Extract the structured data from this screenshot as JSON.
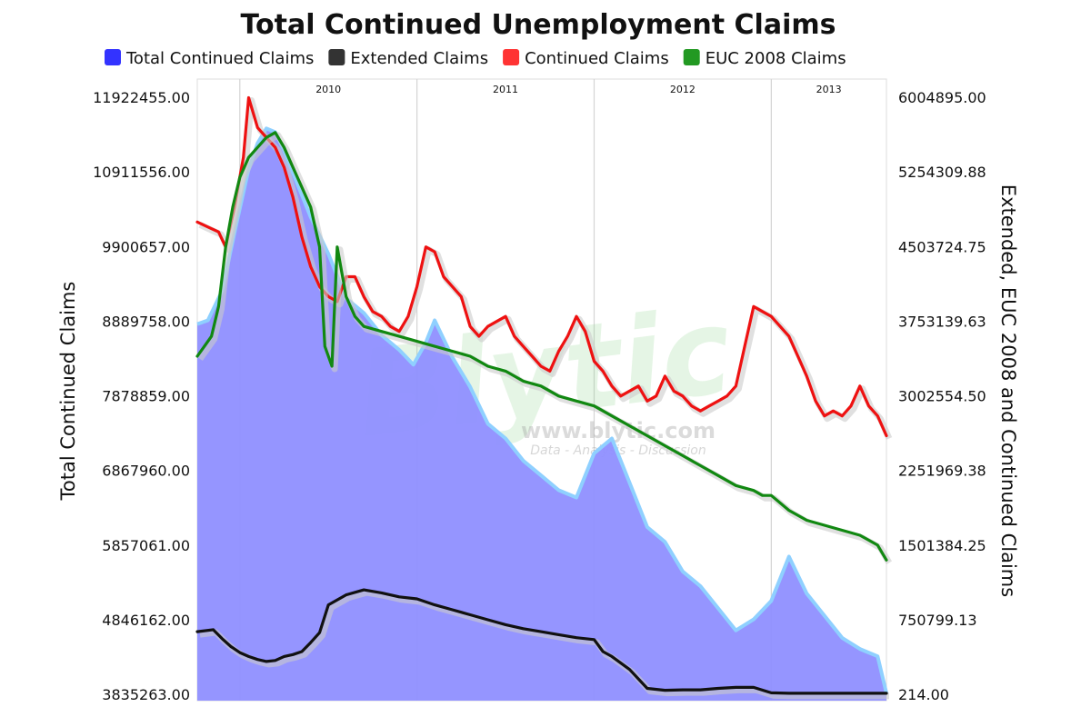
{
  "chart_data": {
    "type": "line",
    "title": "Total Continued Unemployment Claims",
    "legend": {
      "placement": "top",
      "entries": [
        {
          "label": "Total Continued Claims",
          "color": "#3333ff"
        },
        {
          "label": "Extended Claims",
          "color": "#333333"
        },
        {
          "label": "Continued Claims",
          "color": "#ff3333"
        },
        {
          "label": "EUC 2008 Claims",
          "color": "#229922"
        }
      ]
    },
    "x_labels": [
      "2010",
      "2011",
      "2012",
      "2013"
    ],
    "x_range": [
      2009.76,
      2013.65
    ],
    "left_axis": {
      "title": "Total Continued Claims",
      "range": [
        3835263,
        11922455
      ],
      "ticks": [
        "11922455.00",
        "10911556.00",
        "9900657.00",
        "8889758.00",
        "7878859.00",
        "6867960.00",
        "5857061.00",
        "4846162.00",
        "3835263.00"
      ]
    },
    "right_axis": {
      "title": "Extended, EUC 2008 and Continued Claims",
      "range": [
        214,
        6004895
      ],
      "ticks": [
        "6004895.00",
        "5254309.88",
        "4503724.75",
        "3753139.63",
        "3002554.50",
        "2251969.38",
        "1501384.25",
        "750799.13",
        "214.00"
      ]
    },
    "grid": {
      "vertical": true,
      "horizontal": false
    },
    "watermark": {
      "brand": "Blytic",
      "url": "www.blytic.com",
      "tagline": "Data - Analysis - Discussion"
    },
    "series": [
      {
        "name": "Total Continued Claims",
        "axis": "left",
        "kind": "area",
        "color": "#3333ff",
        "x": [
          2009.76,
          2009.82,
          2009.9,
          2009.98,
          2010.05,
          2010.1,
          2010.15,
          2010.2,
          2010.25,
          2010.3,
          2010.4,
          2010.5,
          2010.6,
          2010.7,
          2010.8,
          2010.9,
          2010.98,
          2011.05,
          2011.1,
          2011.2,
          2011.3,
          2011.4,
          2011.5,
          2011.6,
          2011.7,
          2011.8,
          2011.9,
          2012.0,
          2012.1,
          2012.2,
          2012.3,
          2012.4,
          2012.5,
          2012.6,
          2012.7,
          2012.8,
          2012.9,
          2013.0,
          2013.1,
          2013.2,
          2013.3,
          2013.4,
          2013.5,
          2013.6,
          2013.65
        ],
        "y": [
          8850000,
          8900000,
          9300000,
          10200000,
          10950000,
          11300000,
          11500000,
          11450000,
          11200000,
          10900000,
          10300000,
          9800000,
          9200000,
          9000000,
          8700000,
          8500000,
          8300000,
          8600000,
          8900000,
          8400000,
          8000000,
          7500000,
          7300000,
          7000000,
          6800000,
          6600000,
          6500000,
          7100000,
          7300000,
          6700000,
          6100000,
          5900000,
          5500000,
          5300000,
          5000000,
          4700000,
          4850000,
          5100000,
          5700000,
          5200000,
          4900000,
          4600000,
          4450000,
          4350000,
          3850000
        ]
      },
      {
        "name": "Extended Claims",
        "axis": "right",
        "kind": "line",
        "color": "#111111",
        "x": [
          2009.76,
          2009.85,
          2009.9,
          2009.95,
          2010.0,
          2010.05,
          2010.1,
          2010.15,
          2010.2,
          2010.25,
          2010.3,
          2010.35,
          2010.4,
          2010.45,
          2010.5,
          2010.6,
          2010.7,
          2010.8,
          2010.9,
          2011.0,
          2011.1,
          2011.2,
          2011.3,
          2011.4,
          2011.5,
          2011.6,
          2011.7,
          2011.8,
          2011.9,
          2012.0,
          2012.05,
          2012.1,
          2012.2,
          2012.3,
          2012.4,
          2012.5,
          2012.6,
          2012.7,
          2012.8,
          2012.9,
          2013.0,
          2013.1,
          2013.2,
          2013.3,
          2013.4,
          2013.5,
          2013.6,
          2013.65
        ],
        "y": [
          630000,
          650000,
          560000,
          480000,
          420000,
          380000,
          350000,
          330000,
          340000,
          380000,
          400000,
          430000,
          520000,
          620000,
          900000,
          1000000,
          1050000,
          1020000,
          980000,
          960000,
          900000,
          850000,
          800000,
          750000,
          700000,
          660000,
          630000,
          600000,
          570000,
          550000,
          430000,
          380000,
          250000,
          60000,
          40000,
          45000,
          45000,
          60000,
          70000,
          70000,
          15000,
          10000,
          10000,
          10000,
          10000,
          10000,
          10000,
          10000
        ]
      },
      {
        "name": "Continued Claims",
        "axis": "right",
        "kind": "line",
        "color": "#ee1111",
        "x": [
          2009.76,
          2009.82,
          2009.88,
          2009.92,
          2009.97,
          2010.02,
          2010.05,
          2010.1,
          2010.15,
          2010.2,
          2010.25,
          2010.3,
          2010.35,
          2010.4,
          2010.45,
          2010.5,
          2010.55,
          2010.6,
          2010.65,
          2010.7,
          2010.75,
          2010.8,
          2010.85,
          2010.9,
          2010.95,
          2011.0,
          2011.05,
          2011.1,
          2011.15,
          2011.2,
          2011.25,
          2011.3,
          2011.35,
          2011.4,
          2011.45,
          2011.5,
          2011.55,
          2011.6,
          2011.65,
          2011.7,
          2011.75,
          2011.8,
          2011.85,
          2011.9,
          2011.95,
          2012.0,
          2012.05,
          2012.1,
          2012.15,
          2012.2,
          2012.25,
          2012.3,
          2012.35,
          2012.4,
          2012.45,
          2012.5,
          2012.55,
          2012.6,
          2012.65,
          2012.7,
          2012.75,
          2012.8,
          2012.85,
          2012.9,
          2012.95,
          2013.0,
          2013.05,
          2013.1,
          2013.15,
          2013.2,
          2013.25,
          2013.3,
          2013.35,
          2013.4,
          2013.45,
          2013.5,
          2013.55,
          2013.6,
          2013.65
        ],
        "y": [
          4750000,
          4700000,
          4650000,
          4500000,
          4900000,
          5400000,
          6000000,
          5700000,
          5600000,
          5500000,
          5300000,
          5000000,
          4600000,
          4300000,
          4100000,
          4000000,
          3950000,
          4200000,
          4200000,
          4000000,
          3850000,
          3800000,
          3700000,
          3650000,
          3800000,
          4100000,
          4500000,
          4450000,
          4200000,
          4100000,
          4000000,
          3700000,
          3600000,
          3700000,
          3750000,
          3800000,
          3600000,
          3500000,
          3400000,
          3300000,
          3250000,
          3450000,
          3600000,
          3800000,
          3650000,
          3350000,
          3250000,
          3100000,
          3000000,
          3050000,
          3100000,
          2950000,
          3000000,
          3200000,
          3050000,
          3000000,
          2900000,
          2850000,
          2900000,
          2950000,
          3000000,
          3100000,
          3500000,
          3900000,
          3850000,
          3800000,
          3700000,
          3600000,
          3400000,
          3200000,
          2950000,
          2800000,
          2850000,
          2800000,
          2900000,
          3100000,
          2900000,
          2800000,
          2600000
        ]
      },
      {
        "name": "EUC 2008 Claims",
        "axis": "right",
        "kind": "line",
        "color": "#118811",
        "x": [
          2009.76,
          2009.8,
          2009.84,
          2009.88,
          2009.92,
          2009.96,
          2010.0,
          2010.05,
          2010.1,
          2010.15,
          2010.2,
          2010.25,
          2010.3,
          2010.35,
          2010.4,
          2010.45,
          2010.48,
          2010.52,
          2010.55,
          2010.6,
          2010.65,
          2010.7,
          2010.8,
          2010.9,
          2011.0,
          2011.1,
          2011.2,
          2011.3,
          2011.4,
          2011.5,
          2011.6,
          2011.7,
          2011.8,
          2011.9,
          2012.0,
          2012.1,
          2012.2,
          2012.3,
          2012.4,
          2012.5,
          2012.6,
          2012.7,
          2012.8,
          2012.9,
          2012.95,
          2013.0,
          2013.1,
          2013.2,
          2013.3,
          2013.4,
          2013.5,
          2013.55,
          2013.6,
          2013.65
        ],
        "y": [
          3400000,
          3500000,
          3600000,
          3900000,
          4500000,
          4900000,
          5200000,
          5400000,
          5500000,
          5600000,
          5650000,
          5500000,
          5300000,
          5100000,
          4900000,
          4500000,
          3500000,
          3300000,
          4500000,
          4000000,
          3800000,
          3700000,
          3650000,
          3600000,
          3550000,
          3500000,
          3450000,
          3400000,
          3300000,
          3250000,
          3150000,
          3100000,
          3000000,
          2950000,
          2900000,
          2800000,
          2700000,
          2600000,
          2500000,
          2400000,
          2300000,
          2200000,
          2100000,
          2050000,
          2000000,
          2000000,
          1850000,
          1750000,
          1700000,
          1650000,
          1600000,
          1550000,
          1500000,
          1350000
        ]
      }
    ]
  }
}
